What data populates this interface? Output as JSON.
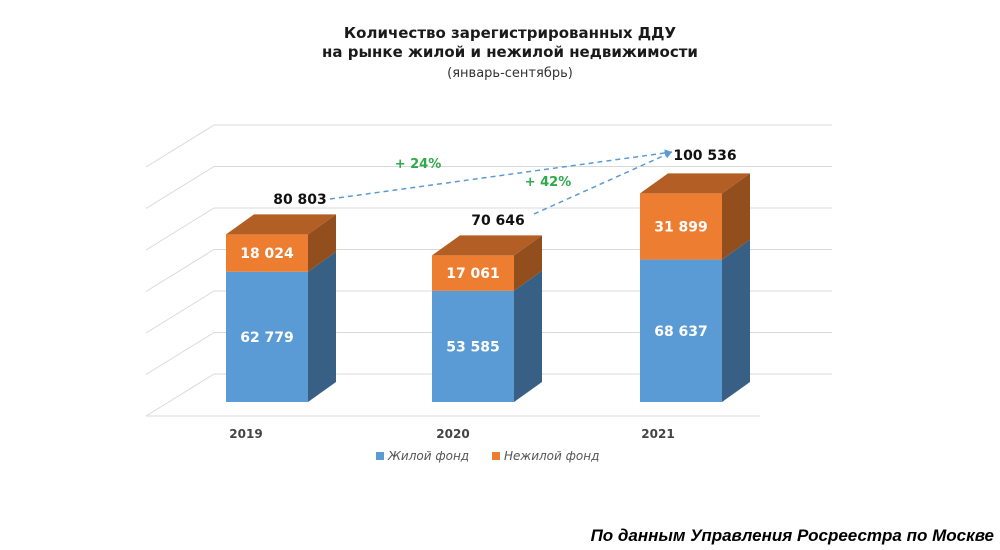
{
  "chart_data": {
    "type": "bar",
    "stacked": true,
    "title": "Количество зарегистрированных ДДУ",
    "title_line2": "на рынке жилой и нежилой недвижимости",
    "subtitle": "(январь-сентябрь)",
    "categories": [
      "2019",
      "2020",
      "2021"
    ],
    "series": [
      {
        "name": "Жилой фонд",
        "values": [
          62779,
          53585,
          68637
        ],
        "labels": [
          "62 779",
          "53 585",
          "68 637"
        ],
        "color": "#5b9bd5"
      },
      {
        "name": "Нежилой фонд",
        "values": [
          18024,
          17061,
          31899
        ],
        "labels": [
          "18 024",
          "17 061",
          "31 899"
        ],
        "color": "#ed7d31"
      }
    ],
    "totals": [
      80803,
      70646,
      100536
    ],
    "total_labels": [
      "80 803",
      "70 646",
      "100 536"
    ],
    "annotations": [
      {
        "text": "+ 24%",
        "from": "2019",
        "to": "2021"
      },
      {
        "text": "+ 42%",
        "from": "2020",
        "to": "2021"
      }
    ],
    "ylim": [
      0,
      120000
    ],
    "grid": true,
    "legend_position": "bottom",
    "xlabel": "",
    "ylabel": ""
  },
  "source_note": "По данным Управления Росреестра по Москве"
}
